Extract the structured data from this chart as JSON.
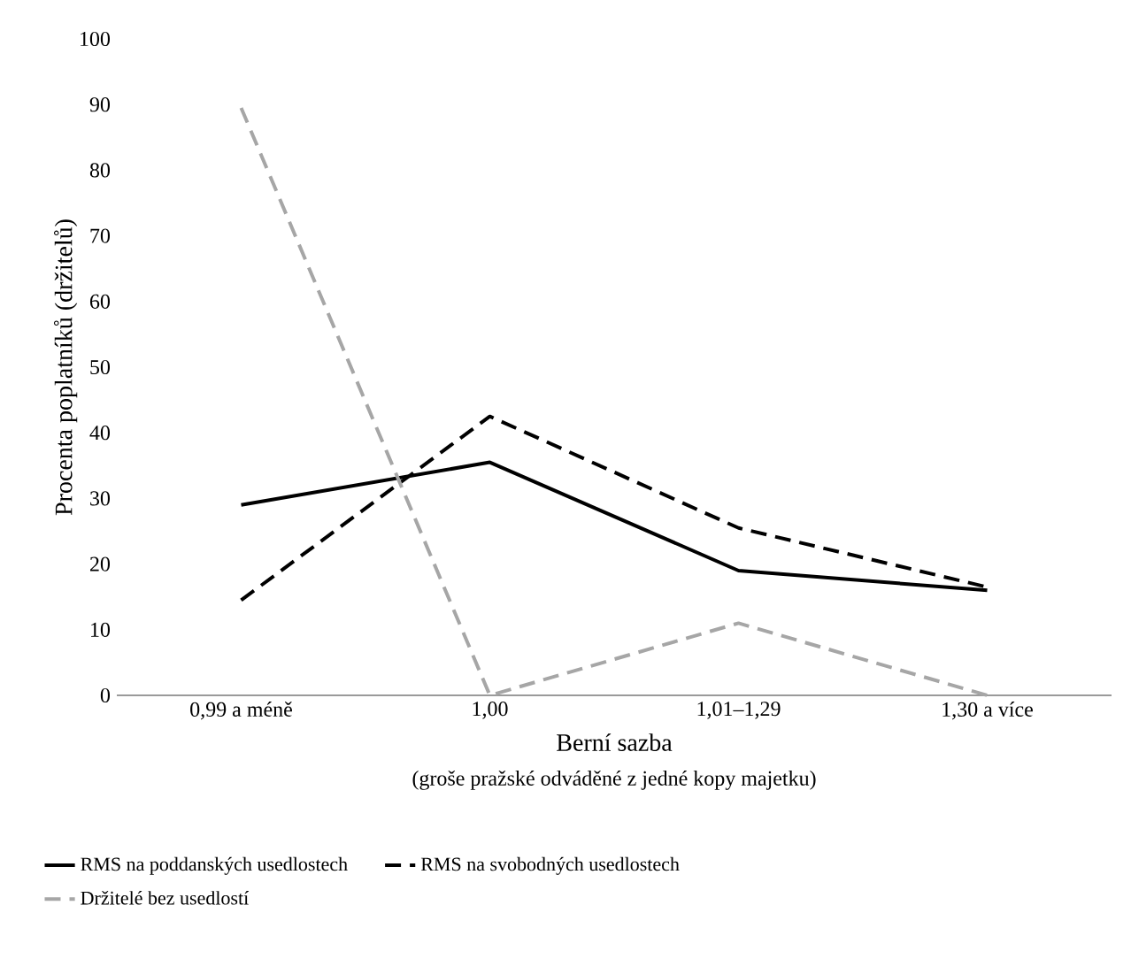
{
  "chart_data": {
    "type": "line",
    "xlabel": "Berní sazba",
    "ylabel": "Procenta poplatníků (držitelů)",
    "annotations": [
      "(groše pražské odváděné z jedné kopy majetku)"
    ],
    "categories": [
      "0,99 a méně",
      "1,00",
      "1,01–1,29",
      "1,30 a více"
    ],
    "ylim": [
      0,
      100
    ],
    "yticks": [
      0,
      10,
      20,
      30,
      40,
      50,
      60,
      70,
      80,
      90,
      100
    ],
    "grid": false,
    "legend": "bottom",
    "marker": "none",
    "series": [
      {
        "name": "RMS na poddanských usedlostech",
        "color": "#000000",
        "line_style": "solid",
        "values": [
          29,
          35.5,
          19,
          16
        ]
      },
      {
        "name": "RMS na svobodných usedlostech",
        "color": "#000000",
        "line_style": "dashed",
        "values": [
          14.5,
          42.5,
          25.5,
          16.5
        ]
      },
      {
        "name": "Držitelé bez usedlostí",
        "color": "#a6a6a6",
        "line_style": "dashed",
        "values": [
          89.5,
          0,
          11,
          0
        ]
      }
    ]
  }
}
